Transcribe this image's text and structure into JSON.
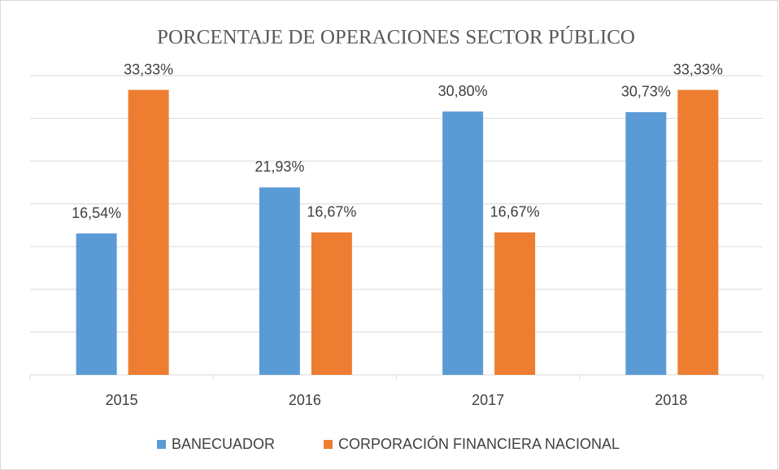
{
  "chart_data": {
    "type": "bar",
    "title": "PORCENTAJE DE OPERACIONES SECTOR PÚBLICO",
    "categories": [
      "2015",
      "2016",
      "2017",
      "2018"
    ],
    "series": [
      {
        "name": "BANECUADOR",
        "color": "#5b9bd5",
        "values": [
          16.54,
          21.93,
          30.8,
          30.73
        ],
        "value_labels": [
          "16,54%",
          "21,93%",
          "30,80%",
          "30,73%"
        ]
      },
      {
        "name": "CORPORACIÓN FINANCIERA NACIONAL",
        "color": "#ed7d31",
        "values": [
          33.33,
          16.67,
          16.67,
          33.33
        ],
        "value_labels": [
          "33,33%",
          "16,67%",
          "16,67%",
          "33,33%"
        ]
      }
    ],
    "ylim": [
      0,
      35
    ],
    "yticks": [
      0,
      5,
      10,
      15,
      20,
      25,
      30,
      35
    ],
    "grid": true,
    "legend": "bottom"
  }
}
